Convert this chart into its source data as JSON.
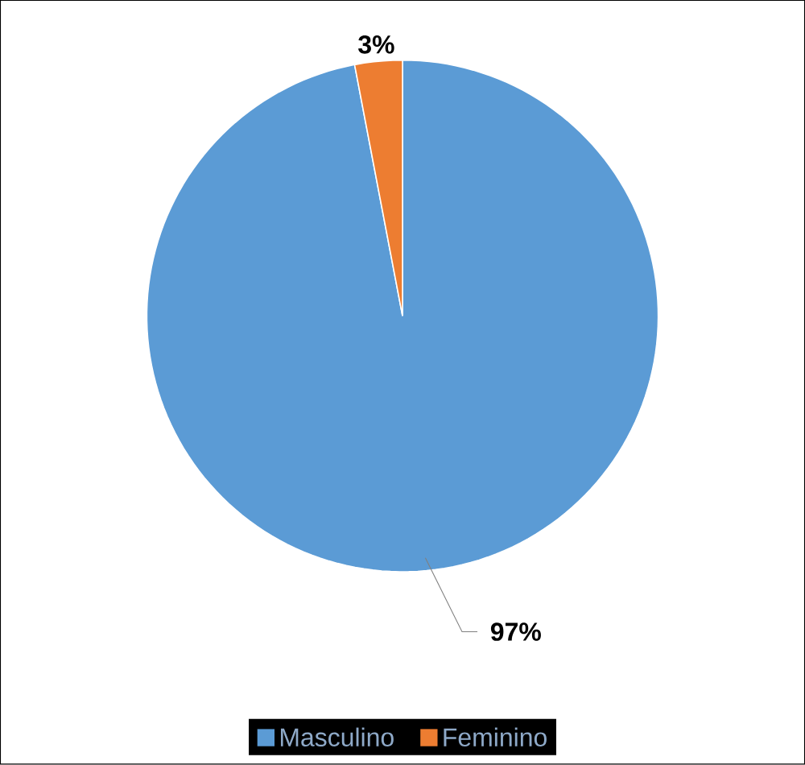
{
  "chart_data": {
    "type": "pie",
    "categories": [
      "Masculino",
      "Feminino"
    ],
    "values": [
      97,
      3
    ],
    "colors": [
      "#5b9bd5",
      "#ed7d31"
    ],
    "value_labels": [
      "97%",
      "3%"
    ],
    "legend": "bottom"
  }
}
